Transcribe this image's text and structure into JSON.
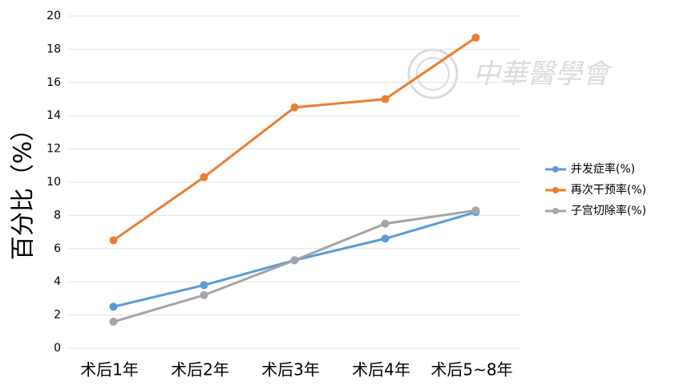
{
  "chart_data": {
    "type": "line",
    "y_label": "百分比（%）",
    "watermark": "中華醫學會",
    "categories": [
      "术后1年",
      "术后2年",
      "术后3年",
      "术后4年",
      "术后5~8年"
    ],
    "series": [
      {
        "name": "并发症率(%)",
        "color": "#5b9bd5",
        "values": [
          2.5,
          3.8,
          5.3,
          6.6,
          8.2
        ]
      },
      {
        "name": "再次干预率(%)",
        "color": "#ed7d31",
        "values": [
          6.5,
          10.3,
          14.5,
          15,
          18.7
        ]
      },
      {
        "name": "子宫切除率(%)",
        "color": "#a5a5a5",
        "values": [
          1.6,
          3.2,
          5.3,
          7.5,
          8.3
        ]
      }
    ],
    "ylim": [
      0,
      20
    ],
    "yticks": [
      0,
      2,
      4,
      6,
      8,
      10,
      12,
      14,
      16,
      18,
      20
    ],
    "grid": true,
    "legend": "right"
  }
}
